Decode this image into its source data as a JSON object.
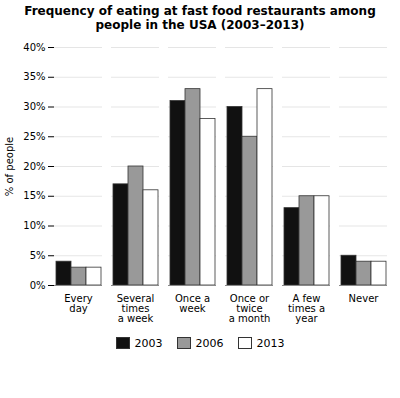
{
  "chart_data": {
    "type": "bar",
    "title": "Frequency of eating at fast food restaurants among\npeople in the USA (2003–2013)",
    "categories": [
      "Every\nday",
      "Several\ntimes\na week",
      "Once a\nweek",
      "Once or\ntwice\na month",
      "A few\ntimes a\nyear",
      "Never"
    ],
    "series": [
      {
        "name": "2003",
        "color": "#111111",
        "values": [
          4,
          17,
          31,
          30,
          13,
          5
        ]
      },
      {
        "name": "2006",
        "color": "#999999",
        "values": [
          3,
          20,
          33,
          25,
          15,
          4
        ]
      },
      {
        "name": "2013",
        "color": "#ffffff",
        "values": [
          3,
          16,
          28,
          33,
          15,
          4
        ]
      }
    ],
    "ylabel": "% of people",
    "ylim": [
      0,
      40
    ],
    "yticks": [
      {
        "value": 0,
        "label": "0%"
      },
      {
        "value": 5,
        "label": "5%"
      },
      {
        "value": 10,
        "label": "10%"
      },
      {
        "value": 15,
        "label": "15%"
      },
      {
        "value": 20,
        "label": "20%"
      },
      {
        "value": 25,
        "label": "25%"
      },
      {
        "value": 30,
        "label": "30%"
      },
      {
        "value": 35,
        "label": "35%"
      },
      {
        "value": 40,
        "label": "40%"
      }
    ],
    "grid": true,
    "legend": "bottom"
  }
}
